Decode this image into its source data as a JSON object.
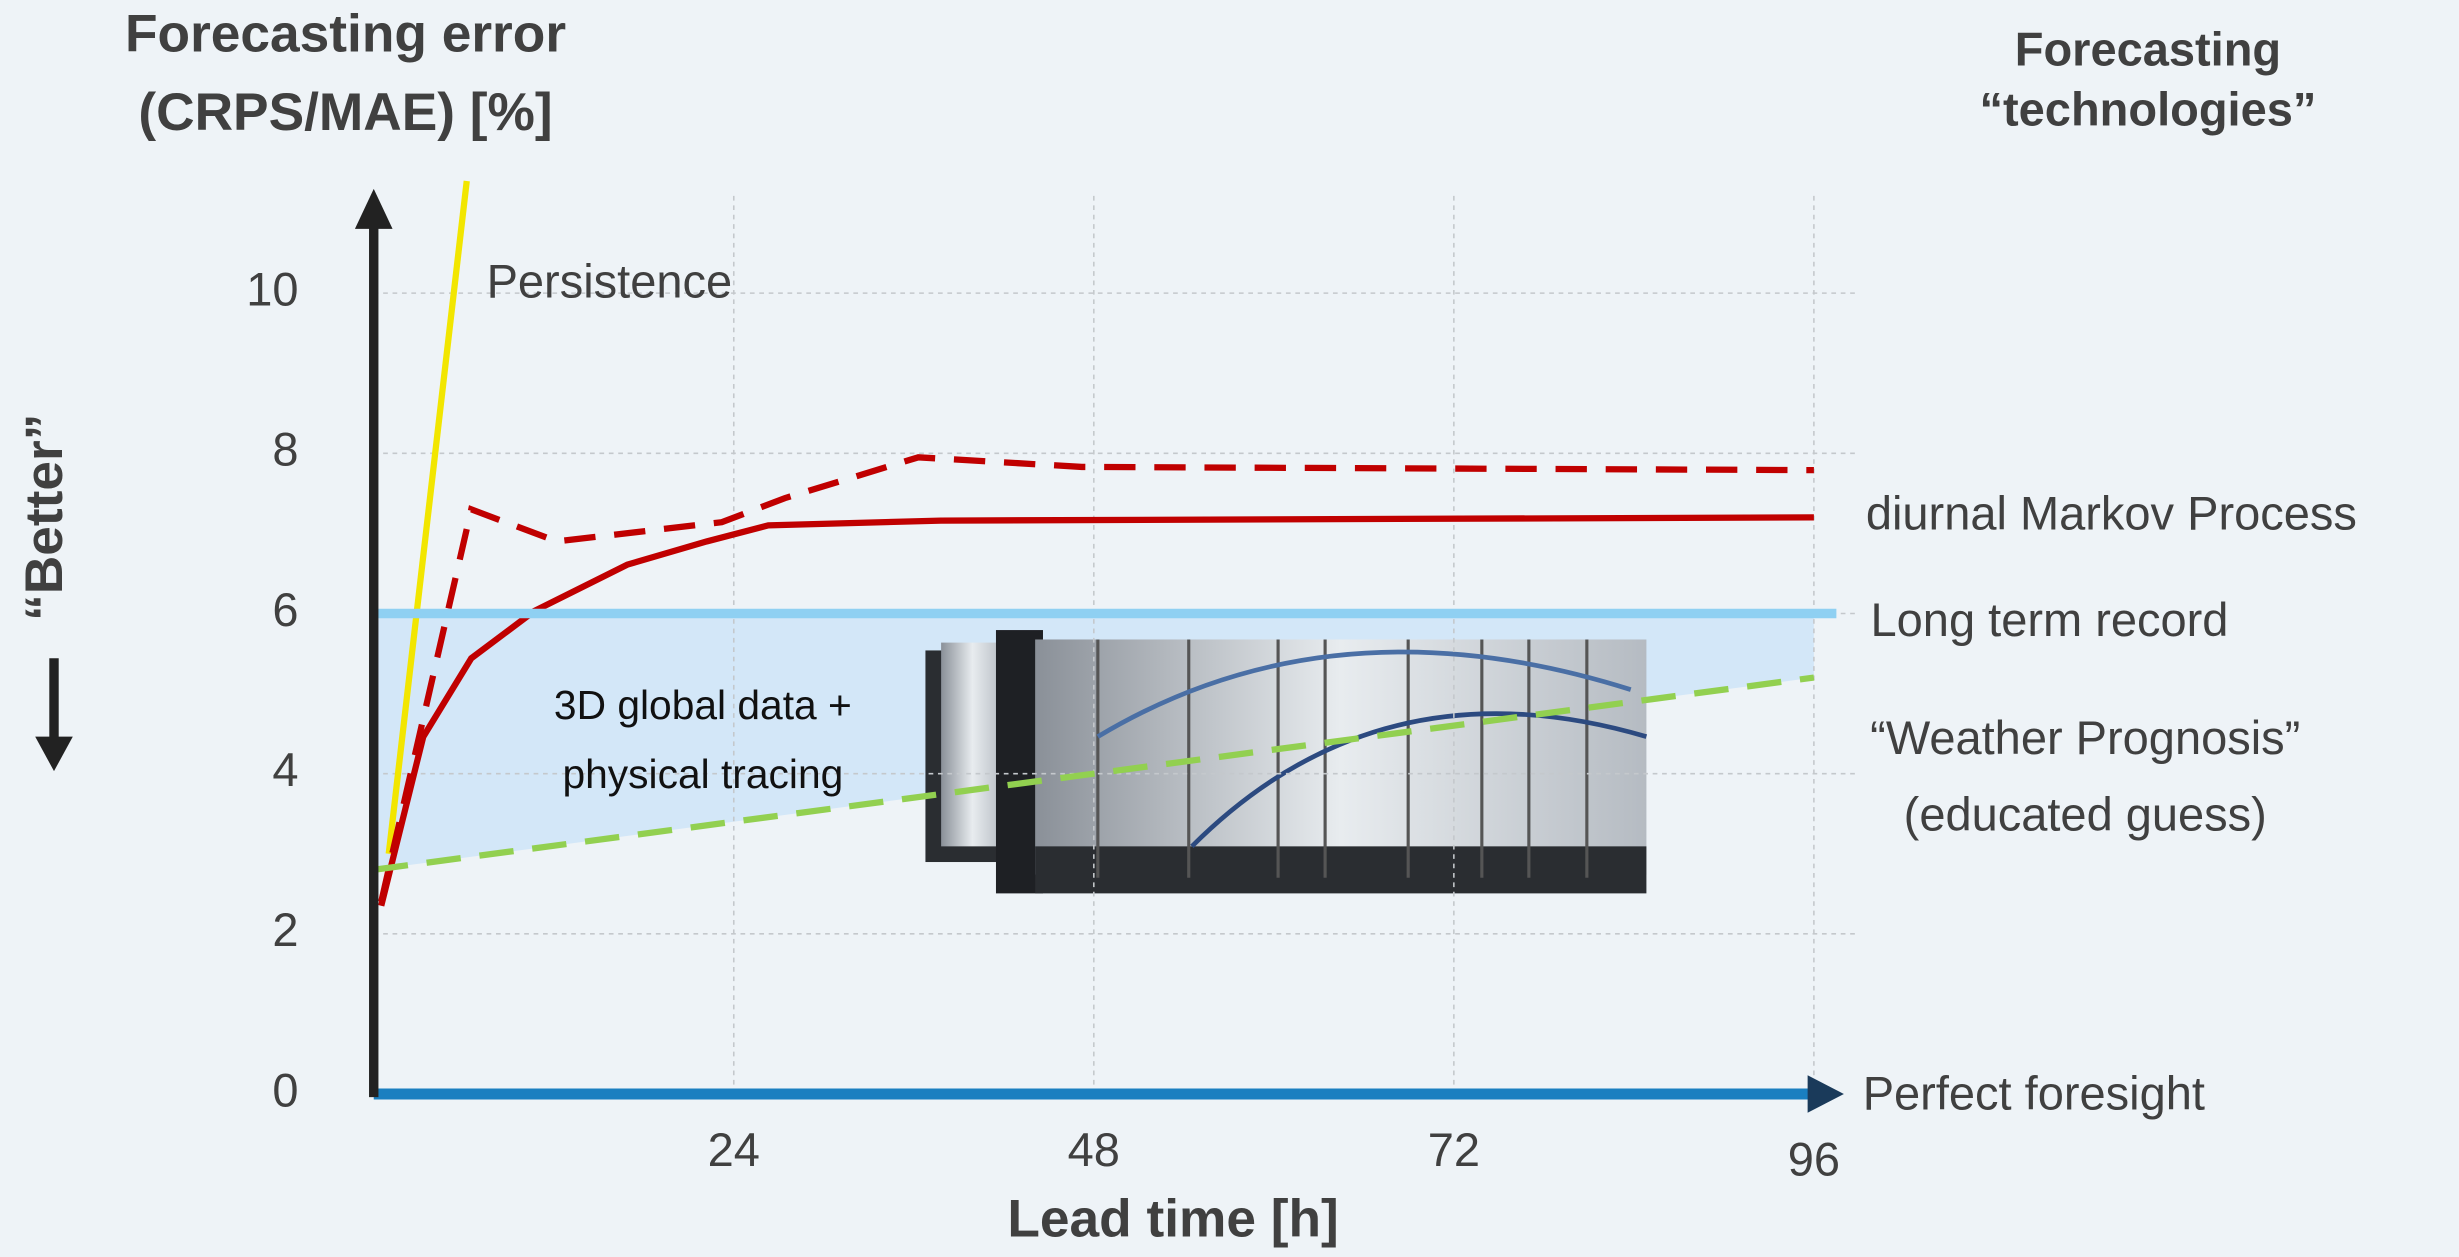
{
  "chart_data": {
    "type": "line",
    "title_lines": [
      "Forecasting error",
      "(CRPS/MAE) [%]"
    ],
    "side_title_lines": [
      "Forecasting",
      "“technologies”"
    ],
    "ylabel": "“Better”",
    "xlabel": "Lead time [h]",
    "annotation_lines": [
      "3D global data +",
      "physical tracing"
    ],
    "xlim": [
      0,
      98
    ],
    "ylim": [
      0,
      11.4
    ],
    "xticks": [
      24,
      48,
      72,
      96
    ],
    "yticks": [
      0,
      2,
      4,
      6,
      8,
      10
    ],
    "grid": true,
    "series": [
      {
        "name": "Persistence",
        "color": "#f2e600",
        "style": "solid",
        "x": [
          1,
          6.2
        ],
        "values": [
          3,
          11.4
        ]
      },
      {
        "name": "diurnal Markov Process",
        "color": "#c00000",
        "style": "solid",
        "x": [
          0.5,
          3.3,
          6.5,
          10.7,
          16.9,
          22.2,
          26.3,
          37.8,
          96
        ],
        "values": [
          2.35,
          4.46,
          5.44,
          6.03,
          6.61,
          6.9,
          7.1,
          7.16,
          7.2
        ]
      },
      {
        "color": "#c00000",
        "style": "dashed",
        "x": [
          0.5,
          6.5,
          12.2,
          23.2,
          27.4,
          36.3,
          47.2,
          96
        ],
        "values": [
          2.4,
          7.3,
          6.9,
          7.14,
          7.44,
          7.95,
          7.83,
          7.79
        ]
      },
      {
        "name": "Long term record",
        "color": "#8fd0f2",
        "style": "solid",
        "x": [
          0,
          97.5
        ],
        "values": [
          6,
          6
        ]
      },
      {
        "name": [
          "“Weather Prognosis”",
          "(educated guess)"
        ],
        "color": "#92d050",
        "style": "dashed",
        "x": [
          0,
          96
        ],
        "values": [
          2.8,
          5.2
        ]
      },
      {
        "name": "Perfect foresight",
        "color": "#1a7fc0",
        "style": "solid",
        "x": [
          0,
          96
        ],
        "values": [
          0,
          0
        ]
      }
    ]
  }
}
